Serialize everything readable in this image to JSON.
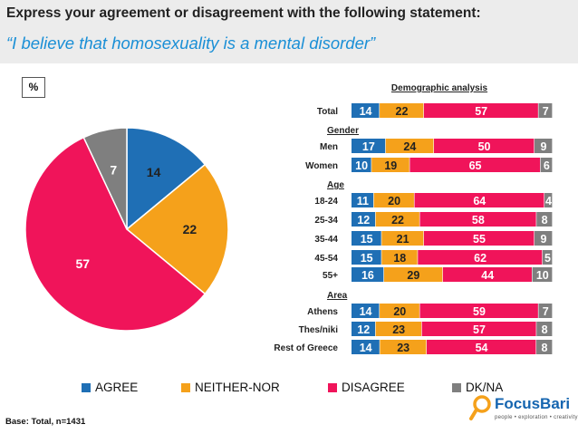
{
  "header": {
    "title": "Express your agreement or disagreement with the following statement:",
    "subtitle": "“I believe that homosexuality is a mental disorder”"
  },
  "unit_label": "%",
  "base_note": "Base: Total, n=1431",
  "demographic_title": "Demographic analysis",
  "logo": {
    "name": "FocusBari",
    "tagline": "people • exploration • creativity"
  },
  "colors": {
    "agree": "#1f6fb5",
    "neither": "#f5a11b",
    "disagree": "#f0145a",
    "dkna": "#7f7f7f",
    "header_bg": "#ececec",
    "title_accent": "#1a8fd6"
  },
  "chart_data": [
    {
      "type": "pie",
      "labels": [
        "AGREE",
        "NEITHER-NOR",
        "DISAGREE",
        "DK/NA"
      ],
      "values": [
        14,
        22,
        57,
        7
      ],
      "legend_position": "bottom"
    },
    {
      "type": "bar",
      "orientation": "horizontal",
      "stacked": true,
      "title": "Demographic analysis",
      "series_names": [
        "AGREE",
        "NEITHER-NOR",
        "DISAGREE",
        "DK/NA"
      ],
      "rows": [
        {
          "label": "Total",
          "group": "",
          "values": [
            14,
            22,
            57,
            7
          ]
        },
        {
          "label": "Men",
          "group": "Gender",
          "values": [
            17,
            24,
            50,
            9
          ]
        },
        {
          "label": "Women",
          "group": "Gender",
          "values": [
            10,
            19,
            65,
            6
          ]
        },
        {
          "label": "18-24",
          "group": "Age",
          "values": [
            11,
            20,
            64,
            4
          ]
        },
        {
          "label": "25-34",
          "group": "Age",
          "values": [
            12,
            22,
            58,
            8
          ]
        },
        {
          "label": "35-44",
          "group": "Age",
          "values": [
            15,
            21,
            55,
            9
          ]
        },
        {
          "label": "45-54",
          "group": "Age",
          "values": [
            15,
            18,
            62,
            5
          ]
        },
        {
          "label": "55+",
          "group": "Age",
          "values": [
            16,
            29,
            44,
            10
          ]
        },
        {
          "label": "Athens",
          "group": "Area",
          "values": [
            14,
            20,
            59,
            7
          ]
        },
        {
          "label": "Thes/niki",
          "group": "Area",
          "values": [
            12,
            23,
            57,
            8
          ]
        },
        {
          "label": "Rest of Greece",
          "group": "Area",
          "values": [
            14,
            23,
            54,
            8
          ]
        }
      ],
      "group_headers": [
        "Gender",
        "Age",
        "Area"
      ]
    }
  ]
}
